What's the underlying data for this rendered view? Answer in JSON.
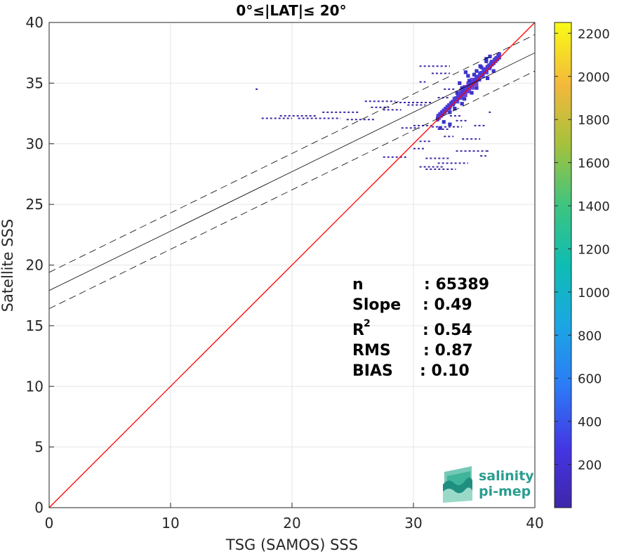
{
  "chart_data": {
    "type": "scatter",
    "title": "0°≤|LAT|≤ 20°",
    "xlabel": "TSG (SAMOS) SSS",
    "ylabel": "Satellite SSS",
    "xlim": [
      0,
      40
    ],
    "ylim": [
      0,
      40
    ],
    "xticks": [
      "0",
      "10",
      "20",
      "30",
      "40"
    ],
    "yticks": [
      "0",
      "5",
      "10",
      "15",
      "20",
      "25",
      "30",
      "35",
      "40"
    ],
    "grid": true,
    "one_to_one_line": {
      "color": "#ff0000",
      "from": [
        0,
        0
      ],
      "to": [
        40,
        40
      ]
    },
    "regression": {
      "slope": 0.49,
      "intercept": 17.9,
      "band_offset": 1.5,
      "color": "#000000"
    },
    "colorbar": {
      "min": 0,
      "max": 2250,
      "ticks": [
        "200",
        "400",
        "600",
        "800",
        "1000",
        "1200",
        "1400",
        "1600",
        "1800",
        "2000",
        "2200"
      ],
      "tick_values": [
        200,
        400,
        600,
        800,
        1000,
        1200,
        1400,
        1600,
        1800,
        2000,
        2200
      ],
      "colormap": "parula"
    },
    "density_points": [
      [
        32.0,
        32.1,
        1
      ],
      [
        32.3,
        32.4,
        1
      ],
      [
        32.6,
        32.7,
        1
      ],
      [
        32.9,
        33.0,
        2
      ],
      [
        33.2,
        33.3,
        2
      ],
      [
        33.5,
        33.6,
        3
      ],
      [
        33.8,
        33.9,
        3
      ],
      [
        34.1,
        34.2,
        4
      ],
      [
        34.4,
        34.5,
        4
      ],
      [
        34.7,
        34.8,
        4
      ],
      [
        35.0,
        35.1,
        4
      ],
      [
        35.3,
        35.4,
        3
      ],
      [
        35.6,
        35.7,
        3
      ],
      [
        35.9,
        36.0,
        3
      ],
      [
        36.2,
        36.3,
        2
      ],
      [
        36.5,
        36.7,
        2
      ],
      [
        36.8,
        37.0,
        1
      ],
      [
        37.0,
        37.3,
        1
      ],
      [
        33.6,
        34.2,
        1
      ],
      [
        34.0,
        34.6,
        1
      ],
      [
        34.6,
        35.2,
        1
      ],
      [
        35.0,
        35.7,
        1
      ],
      [
        35.6,
        36.3,
        1
      ],
      [
        36.0,
        36.8,
        1
      ],
      [
        34.2,
        33.7,
        1
      ],
      [
        34.8,
        34.2,
        1
      ],
      [
        35.2,
        34.6,
        1
      ],
      [
        33.0,
        32.6,
        1
      ],
      [
        33.4,
        32.9,
        1
      ],
      [
        34.0,
        33.3,
        1
      ],
      [
        35.5,
        36.4,
        1
      ],
      [
        36.0,
        37.0,
        1
      ],
      [
        36.3,
        37.2,
        1
      ],
      [
        36.6,
        36.0,
        1
      ],
      [
        36.1,
        35.4,
        1
      ],
      [
        33.8,
        35.0,
        1
      ],
      [
        34.5,
        35.6,
        1
      ],
      [
        35.2,
        36.0,
        1
      ],
      [
        34.3,
        35.9,
        1
      ],
      [
        32.5,
        31.8,
        1
      ],
      [
        33.0,
        31.6,
        1
      ],
      [
        32.2,
        31.3,
        1
      ]
    ],
    "sparse_segments": [
      [
        17.5,
        32.1,
        20.0
      ],
      [
        20.5,
        32.1,
        24.0
      ],
      [
        24.5,
        32.0,
        26.8
      ],
      [
        19.0,
        32.3,
        22.0
      ],
      [
        22.5,
        32.6,
        25.5
      ],
      [
        26.0,
        33.5,
        28.5
      ],
      [
        28.5,
        33.4,
        31.5
      ],
      [
        26.5,
        33.0,
        28.0
      ],
      [
        27.5,
        32.8,
        29.0
      ],
      [
        29.5,
        33.2,
        31.0
      ],
      [
        30.0,
        31.5,
        31.5
      ],
      [
        29.0,
        31.3,
        30.5
      ],
      [
        31.5,
        31.4,
        34.0
      ],
      [
        32.0,
        31.2,
        33.0
      ],
      [
        32.5,
        30.6,
        33.3
      ],
      [
        34.0,
        30.4,
        35.5
      ],
      [
        33.5,
        29.4,
        36.0
      ],
      [
        31.0,
        28.8,
        33.0
      ],
      [
        27.5,
        28.9,
        29.5
      ],
      [
        30.5,
        28.1,
        32.5
      ],
      [
        31.0,
        27.9,
        33.5
      ],
      [
        32.0,
        28.4,
        34.5
      ],
      [
        30.5,
        36.4,
        33.0
      ],
      [
        31.5,
        35.8,
        33.0
      ],
      [
        32.5,
        34.5,
        33.5
      ],
      [
        30.5,
        35.1,
        31.0
      ],
      [
        33.0,
        32.3,
        34.0
      ],
      [
        33.5,
        31.9,
        34.5
      ],
      [
        30.0,
        29.6,
        31.0
      ],
      [
        35.0,
        31.5,
        36.0
      ],
      [
        32.0,
        33.8,
        33.0
      ],
      [
        36.0,
        29.4,
        36.3
      ],
      [
        17.0,
        34.5,
        17.2
      ],
      [
        36.2,
        32.6,
        36.4
      ],
      [
        35.5,
        29.0,
        36.0
      ],
      [
        30.5,
        30.2,
        31.5
      ]
    ]
  },
  "stats": {
    "rows": [
      {
        "label": "n",
        "value": ": 65389"
      },
      {
        "label": "Slope",
        "value": ": 0.49"
      },
      {
        "label": "R",
        "sup": "2",
        "value": ": 0.54"
      },
      {
        "label": "RMS",
        "value": ": 0.87"
      },
      {
        "label": "BIAS",
        "value": ": 0.10"
      }
    ]
  },
  "logo": {
    "line1": "salinity",
    "line2": "pi-mep",
    "icon": "salinity-pimep-logo-icon",
    "color": "#2a9d8f"
  }
}
